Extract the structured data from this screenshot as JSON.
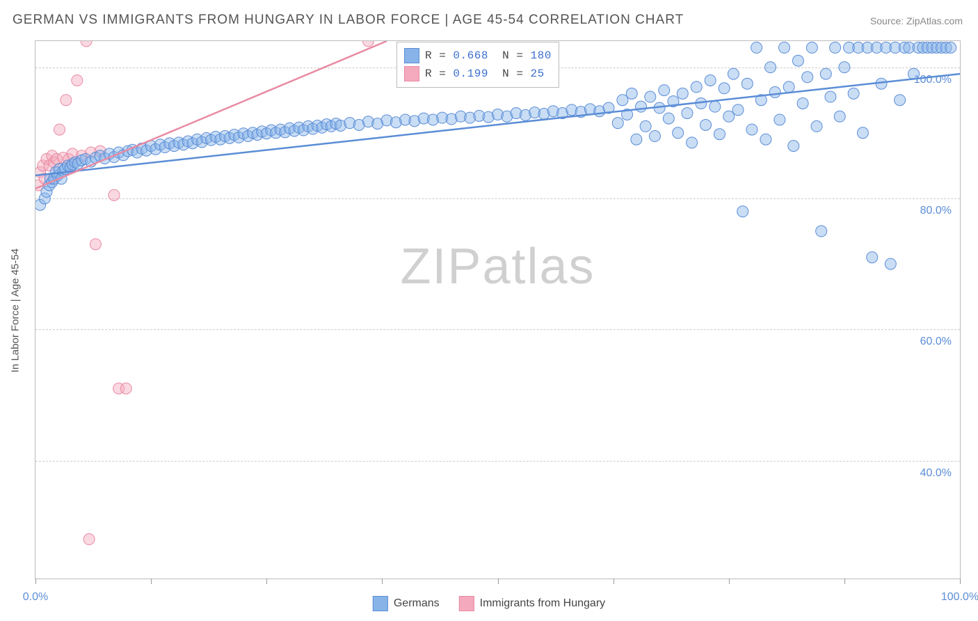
{
  "title": "GERMAN VS IMMIGRANTS FROM HUNGARY IN LABOR FORCE | AGE 45-54 CORRELATION CHART",
  "source": "Source: ZipAtlas.com",
  "y_axis_title": "In Labor Force | Age 45-54",
  "watermark_zip": "ZIP",
  "watermark_atlas": "atlas",
  "chart": {
    "type": "scatter-correlation",
    "xlim": [
      0,
      100
    ],
    "ylim": [
      22,
      104
    ],
    "x_ticks": [
      0,
      12.5,
      25,
      37.5,
      50,
      62.5,
      75,
      87.5,
      100
    ],
    "x_tick_labels": {
      "0": "0.0%",
      "100": "100.0%"
    },
    "y_gridlines": [
      40,
      60,
      80,
      100
    ],
    "y_tick_labels": {
      "40": "40.0%",
      "60": "60.0%",
      "80": "80.0%",
      "100": "100.0%"
    },
    "marker_radius": 8,
    "marker_opacity": 0.45,
    "line_width": 2.5,
    "background_color": "#ffffff",
    "grid_color": "#cccccc",
    "axis_color": "#bbbbbb",
    "series": [
      {
        "name": "Germans",
        "color_fill": "#87b3e8",
        "color_stroke": "#5b8dd6",
        "R": 0.668,
        "N": 180,
        "trend": {
          "x1": 0,
          "y1": 83.5,
          "x2": 100,
          "y2": 99
        },
        "points": [
          [
            0.5,
            79
          ],
          [
            1,
            80
          ],
          [
            1.2,
            81
          ],
          [
            1.5,
            82
          ],
          [
            1.6,
            83
          ],
          [
            1.8,
            82.5
          ],
          [
            2,
            83
          ],
          [
            2.2,
            84
          ],
          [
            2.4,
            83.5
          ],
          [
            2.6,
            84.5
          ],
          [
            2.8,
            83
          ],
          [
            3,
            84.2
          ],
          [
            3.2,
            84.5
          ],
          [
            3.5,
            85
          ],
          [
            3.8,
            84.8
          ],
          [
            4,
            85.2
          ],
          [
            4.3,
            85.5
          ],
          [
            4.6,
            85.3
          ],
          [
            5,
            85.8
          ],
          [
            5.4,
            86
          ],
          [
            6,
            85.6
          ],
          [
            6.5,
            86.2
          ],
          [
            7,
            86.5
          ],
          [
            7.5,
            86.1
          ],
          [
            8,
            86.8
          ],
          [
            8.5,
            86.3
          ],
          [
            9,
            87
          ],
          [
            9.5,
            86.6
          ],
          [
            10,
            87.2
          ],
          [
            10.5,
            87.4
          ],
          [
            11,
            87
          ],
          [
            11.5,
            87.6
          ],
          [
            12,
            87.3
          ],
          [
            12.5,
            88
          ],
          [
            13,
            87.5
          ],
          [
            13.5,
            88.2
          ],
          [
            14,
            87.8
          ],
          [
            14.5,
            88.4
          ],
          [
            15,
            88
          ],
          [
            15.5,
            88.5
          ],
          [
            16,
            88.2
          ],
          [
            16.5,
            88.7
          ],
          [
            17,
            88.4
          ],
          [
            17.5,
            89
          ],
          [
            18,
            88.6
          ],
          [
            18.5,
            89.2
          ],
          [
            19,
            88.9
          ],
          [
            19.5,
            89.4
          ],
          [
            20,
            89
          ],
          [
            20.5,
            89.5
          ],
          [
            21,
            89.2
          ],
          [
            21.5,
            89.7
          ],
          [
            22,
            89.3
          ],
          [
            22.5,
            89.9
          ],
          [
            23,
            89.5
          ],
          [
            23.5,
            90
          ],
          [
            24,
            89.7
          ],
          [
            24.5,
            90.2
          ],
          [
            25,
            89.9
          ],
          [
            25.5,
            90.4
          ],
          [
            26,
            90
          ],
          [
            26.5,
            90.5
          ],
          [
            27,
            90.1
          ],
          [
            27.5,
            90.7
          ],
          [
            28,
            90.3
          ],
          [
            28.5,
            90.8
          ],
          [
            29,
            90.4
          ],
          [
            29.5,
            91
          ],
          [
            30,
            90.6
          ],
          [
            30.5,
            91.1
          ],
          [
            31,
            90.8
          ],
          [
            31.5,
            91.3
          ],
          [
            32,
            91
          ],
          [
            32.5,
            91.4
          ],
          [
            33,
            91.1
          ],
          [
            34,
            91.5
          ],
          [
            35,
            91.2
          ],
          [
            36,
            91.7
          ],
          [
            37,
            91.4
          ],
          [
            38,
            91.9
          ],
          [
            39,
            91.6
          ],
          [
            40,
            92
          ],
          [
            41,
            91.8
          ],
          [
            42,
            92.2
          ],
          [
            43,
            92
          ],
          [
            44,
            92.3
          ],
          [
            45,
            92.1
          ],
          [
            46,
            92.5
          ],
          [
            47,
            92.3
          ],
          [
            48,
            92.6
          ],
          [
            49,
            92.4
          ],
          [
            50,
            92.8
          ],
          [
            51,
            92.5
          ],
          [
            52,
            93
          ],
          [
            53,
            92.7
          ],
          [
            54,
            93.1
          ],
          [
            55,
            92.9
          ],
          [
            56,
            93.3
          ],
          [
            57,
            93
          ],
          [
            58,
            93.5
          ],
          [
            59,
            93.2
          ],
          [
            60,
            93.6
          ],
          [
            61,
            93.3
          ],
          [
            62,
            93.8
          ],
          [
            63,
            91.5
          ],
          [
            63.5,
            95
          ],
          [
            64,
            92.8
          ],
          [
            64.5,
            96
          ],
          [
            65,
            89
          ],
          [
            65.5,
            94
          ],
          [
            66,
            91
          ],
          [
            66.5,
            95.5
          ],
          [
            67,
            89.5
          ],
          [
            67.5,
            93.8
          ],
          [
            68,
            96.5
          ],
          [
            68.5,
            92.2
          ],
          [
            69,
            94.8
          ],
          [
            69.5,
            90
          ],
          [
            70,
            96
          ],
          [
            70.5,
            93
          ],
          [
            71,
            88.5
          ],
          [
            71.5,
            97
          ],
          [
            72,
            94.5
          ],
          [
            72.5,
            91.2
          ],
          [
            73,
            98
          ],
          [
            73.5,
            94
          ],
          [
            74,
            89.8
          ],
          [
            74.5,
            96.8
          ],
          [
            75,
            92.5
          ],
          [
            75.5,
            99
          ],
          [
            76,
            93.5
          ],
          [
            76.5,
            78
          ],
          [
            77,
            97.5
          ],
          [
            77.5,
            90.5
          ],
          [
            78,
            103
          ],
          [
            78.5,
            95
          ],
          [
            79,
            89
          ],
          [
            79.5,
            100
          ],
          [
            80,
            96.2
          ],
          [
            80.5,
            92
          ],
          [
            81,
            103
          ],
          [
            81.5,
            97
          ],
          [
            82,
            88
          ],
          [
            82.5,
            101
          ],
          [
            83,
            94.5
          ],
          [
            83.5,
            98.5
          ],
          [
            84,
            103
          ],
          [
            84.5,
            91
          ],
          [
            85,
            75
          ],
          [
            85.5,
            99
          ],
          [
            86,
            95.5
          ],
          [
            86.5,
            103
          ],
          [
            87,
            92.5
          ],
          [
            87.5,
            100
          ],
          [
            88,
            103
          ],
          [
            88.5,
            96
          ],
          [
            89,
            103
          ],
          [
            89.5,
            90
          ],
          [
            90,
            103
          ],
          [
            90.5,
            71
          ],
          [
            91,
            103
          ],
          [
            91.5,
            97.5
          ],
          [
            92,
            103
          ],
          [
            92.5,
            70
          ],
          [
            93,
            103
          ],
          [
            93.5,
            95
          ],
          [
            94,
            103
          ],
          [
            94.5,
            103
          ],
          [
            95,
            99
          ],
          [
            95.5,
            103
          ],
          [
            96,
            103
          ],
          [
            96.5,
            103
          ],
          [
            97,
            103
          ],
          [
            97.5,
            103
          ],
          [
            98,
            103
          ],
          [
            98.5,
            103
          ],
          [
            99,
            103
          ]
        ]
      },
      {
        "name": "Immigrants from Hungary",
        "color_fill": "#f5a9bc",
        "color_stroke": "#e88ba3",
        "R": 0.199,
        "N": 25,
        "trend": {
          "x1": 0,
          "y1": 81.5,
          "x2": 38,
          "y2": 104
        },
        "points": [
          [
            0.3,
            82
          ],
          [
            0.5,
            84
          ],
          [
            0.8,
            85
          ],
          [
            1,
            83
          ],
          [
            1.2,
            86
          ],
          [
            1.5,
            85
          ],
          [
            1.8,
            86.5
          ],
          [
            2,
            85.5
          ],
          [
            2.3,
            86
          ],
          [
            2.6,
            90.5
          ],
          [
            3,
            86.2
          ],
          [
            3.3,
            95
          ],
          [
            3.6,
            86
          ],
          [
            4,
            86.8
          ],
          [
            4.5,
            98
          ],
          [
            5,
            86.5
          ],
          [
            5.5,
            104
          ],
          [
            6,
            87
          ],
          [
            6.5,
            73
          ],
          [
            7,
            87.2
          ],
          [
            8.5,
            80.5
          ],
          [
            9,
            51
          ],
          [
            9.8,
            51
          ],
          [
            5.8,
            28
          ],
          [
            36,
            104
          ]
        ]
      }
    ]
  },
  "legend_stats": [
    {
      "swatch_fill": "#87b3e8",
      "swatch_stroke": "#5b8dd6",
      "r_label": "R =",
      "r_val": "0.668",
      "n_label": "N =",
      "n_val": "180"
    },
    {
      "swatch_fill": "#f5a9bc",
      "swatch_stroke": "#e88ba3",
      "r_label": "R =",
      "r_val": "0.199",
      "n_label": "N =",
      "n_val": " 25"
    }
  ],
  "bottom_legend": [
    {
      "swatch_fill": "#87b3e8",
      "swatch_stroke": "#5b8dd6",
      "label": "Germans"
    },
    {
      "swatch_fill": "#f5a9bc",
      "swatch_stroke": "#e88ba3",
      "label": "Immigrants from Hungary"
    }
  ]
}
